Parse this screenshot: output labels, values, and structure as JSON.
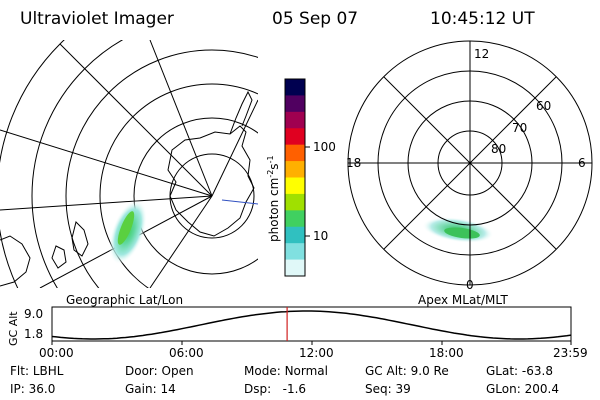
{
  "header": {
    "instrument": "Ultraviolet Imager",
    "date": "05 Sep 07",
    "time": "10:45:12 UT"
  },
  "colorbar": {
    "label_main": "photon cm",
    "label_sup1": "-2",
    "label_mid": "s",
    "label_sup2": "-1",
    "ticks": [
      "100",
      "10"
    ],
    "colors": [
      "#000050",
      "#500060",
      "#a00050",
      "#e00020",
      "#ff6000",
      "#ffb000",
      "#ffff00",
      "#a0e000",
      "#40d060",
      "#30c0c0",
      "#80e0e0",
      "#e0f8f8"
    ]
  },
  "geo_map": {
    "caption": "Geographic Lat/Lon"
  },
  "polar_plot": {
    "caption": "Apex MLat/MLT",
    "mlt_labels": {
      "top": "12",
      "left": "18",
      "right": "6",
      "bottom": "0"
    },
    "lat_labels": [
      "60",
      "70",
      "80"
    ]
  },
  "altitude_plot": {
    "ylabel": "GC Alt",
    "yticks": [
      "9.0",
      "1.8"
    ],
    "xticks": [
      "00:00",
      "06:00",
      "12:00",
      "18:00",
      "23:59"
    ],
    "current_time_fraction": 0.453
  },
  "info": {
    "filter_label": "Flt:",
    "filter_value": "LBHL",
    "ip_label": "IP:",
    "ip_value": "36.0",
    "door_label": "Door:",
    "door_value": "Open",
    "gain_label": "Gain:",
    "gain_value": "14",
    "mode_label": "Mode:",
    "mode_value": "Normal",
    "dsp_label": "Dsp:",
    "dsp_value": "-1.6",
    "gcalt_label": "GC Alt:",
    "gcalt_value": "9.0 Re",
    "seq_label": "Seq:",
    "seq_value": "39",
    "glat_label": "GLat:",
    "glat_value": "-63.8",
    "glon_label": "GLon:",
    "glon_value": "200.4"
  }
}
